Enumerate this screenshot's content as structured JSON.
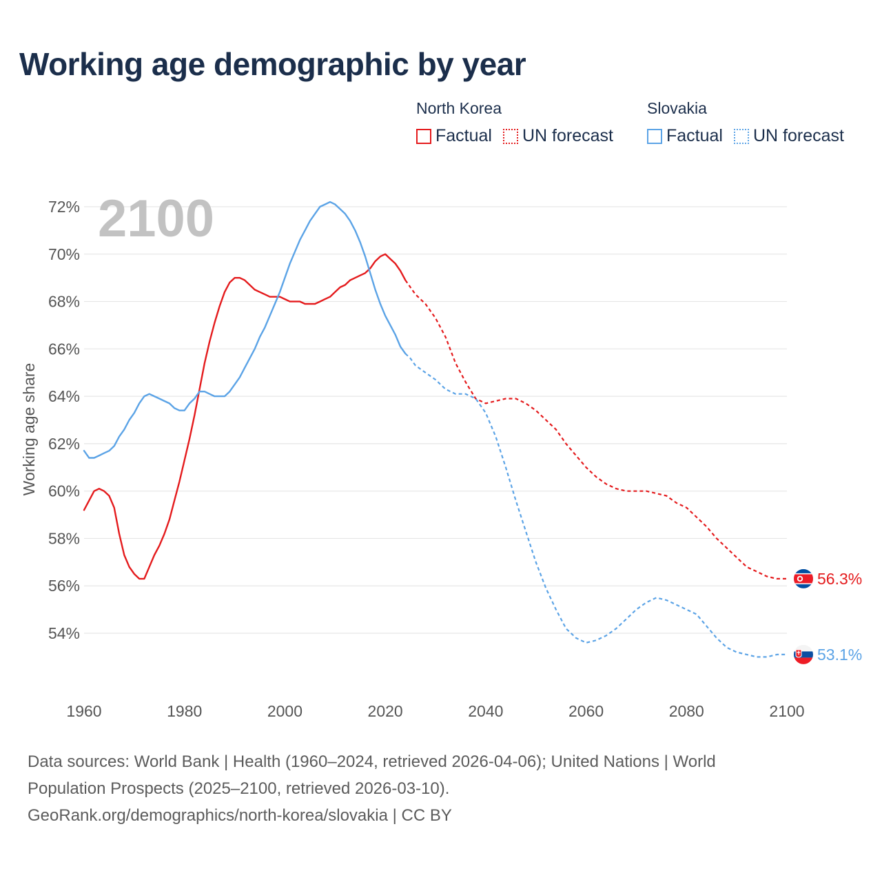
{
  "title": "Working age demographic by year",
  "legend": {
    "groups": [
      {
        "country": "North Korea",
        "factual_label": "Factual",
        "forecast_label": "UN forecast",
        "color": "#e41a1c"
      },
      {
        "country": "Slovakia",
        "factual_label": "Factual",
        "forecast_label": "UN forecast",
        "color": "#5ba3e6"
      }
    ]
  },
  "year_overlay": "2100",
  "sources": {
    "line1": "Data sources: World Bank | Health (1960–2024, retrieved 2026-04-06); United Nations | World",
    "line2": "Population Prospects (2025–2100, retrieved 2026-03-10).",
    "line3": "GeoRank.org/demographics/north-korea/slovakia | CC BY"
  },
  "chart_data": {
    "type": "line",
    "title": "Working age demographic by year",
    "xlabel": "",
    "ylabel": "Working age share",
    "xlim": [
      1960,
      2100
    ],
    "ylim": [
      52,
      72.5
    ],
    "x_ticks": [
      1960,
      1980,
      2000,
      2020,
      2040,
      2060,
      2080,
      2100
    ],
    "y_ticks": [
      54,
      56,
      58,
      60,
      62,
      64,
      66,
      68,
      70,
      72
    ],
    "y_tick_labels": [
      "54%",
      "56%",
      "58%",
      "60%",
      "62%",
      "64%",
      "66%",
      "68%",
      "70%",
      "72%"
    ],
    "grid": true,
    "factual_end_year": 2024,
    "series": [
      {
        "name": "North Korea",
        "color": "#e41a1c",
        "end_label": "56.3%",
        "points": [
          [
            1960,
            59.2
          ],
          [
            1961,
            59.6
          ],
          [
            1962,
            60.0
          ],
          [
            1963,
            60.1
          ],
          [
            1964,
            60.0
          ],
          [
            1965,
            59.8
          ],
          [
            1966,
            59.3
          ],
          [
            1967,
            58.2
          ],
          [
            1968,
            57.3
          ],
          [
            1969,
            56.8
          ],
          [
            1970,
            56.5
          ],
          [
            1971,
            56.3
          ],
          [
            1972,
            56.3
          ],
          [
            1973,
            56.8
          ],
          [
            1974,
            57.3
          ],
          [
            1975,
            57.7
          ],
          [
            1976,
            58.2
          ],
          [
            1977,
            58.8
          ],
          [
            1978,
            59.6
          ],
          [
            1979,
            60.4
          ],
          [
            1980,
            61.3
          ],
          [
            1981,
            62.2
          ],
          [
            1982,
            63.2
          ],
          [
            1983,
            64.3
          ],
          [
            1984,
            65.4
          ],
          [
            1985,
            66.3
          ],
          [
            1986,
            67.1
          ],
          [
            1987,
            67.8
          ],
          [
            1988,
            68.4
          ],
          [
            1989,
            68.8
          ],
          [
            1990,
            69.0
          ],
          [
            1991,
            69.0
          ],
          [
            1992,
            68.9
          ],
          [
            1993,
            68.7
          ],
          [
            1994,
            68.5
          ],
          [
            1995,
            68.4
          ],
          [
            1996,
            68.3
          ],
          [
            1997,
            68.2
          ],
          [
            1998,
            68.2
          ],
          [
            1999,
            68.2
          ],
          [
            2000,
            68.1
          ],
          [
            2001,
            68.0
          ],
          [
            2002,
            68.0
          ],
          [
            2003,
            68.0
          ],
          [
            2004,
            67.9
          ],
          [
            2005,
            67.9
          ],
          [
            2006,
            67.9
          ],
          [
            2007,
            68.0
          ],
          [
            2008,
            68.1
          ],
          [
            2009,
            68.2
          ],
          [
            2010,
            68.4
          ],
          [
            2011,
            68.6
          ],
          [
            2012,
            68.7
          ],
          [
            2013,
            68.9
          ],
          [
            2014,
            69.0
          ],
          [
            2015,
            69.1
          ],
          [
            2016,
            69.2
          ],
          [
            2017,
            69.4
          ],
          [
            2018,
            69.7
          ],
          [
            2019,
            69.9
          ],
          [
            2020,
            70.0
          ],
          [
            2021,
            69.8
          ],
          [
            2022,
            69.6
          ],
          [
            2023,
            69.3
          ],
          [
            2024,
            68.9
          ],
          [
            2025,
            68.6
          ],
          [
            2026,
            68.3
          ],
          [
            2028,
            67.9
          ],
          [
            2030,
            67.3
          ],
          [
            2032,
            66.5
          ],
          [
            2034,
            65.4
          ],
          [
            2036,
            64.6
          ],
          [
            2038,
            63.9
          ],
          [
            2040,
            63.7
          ],
          [
            2042,
            63.8
          ],
          [
            2044,
            63.9
          ],
          [
            2046,
            63.9
          ],
          [
            2048,
            63.7
          ],
          [
            2050,
            63.4
          ],
          [
            2052,
            63.0
          ],
          [
            2054,
            62.6
          ],
          [
            2056,
            62.0
          ],
          [
            2058,
            61.5
          ],
          [
            2060,
            61.0
          ],
          [
            2062,
            60.6
          ],
          [
            2064,
            60.3
          ],
          [
            2066,
            60.1
          ],
          [
            2068,
            60.0
          ],
          [
            2070,
            60.0
          ],
          [
            2072,
            60.0
          ],
          [
            2074,
            59.9
          ],
          [
            2076,
            59.8
          ],
          [
            2078,
            59.5
          ],
          [
            2080,
            59.3
          ],
          [
            2082,
            58.9
          ],
          [
            2084,
            58.5
          ],
          [
            2086,
            58.0
          ],
          [
            2088,
            57.6
          ],
          [
            2090,
            57.2
          ],
          [
            2092,
            56.8
          ],
          [
            2094,
            56.6
          ],
          [
            2096,
            56.4
          ],
          [
            2098,
            56.3
          ],
          [
            2100,
            56.3
          ]
        ]
      },
      {
        "name": "Slovakia",
        "color": "#5ba3e6",
        "end_label": "53.1%",
        "points": [
          [
            1960,
            61.7
          ],
          [
            1961,
            61.4
          ],
          [
            1962,
            61.4
          ],
          [
            1963,
            61.5
          ],
          [
            1964,
            61.6
          ],
          [
            1965,
            61.7
          ],
          [
            1966,
            61.9
          ],
          [
            1967,
            62.3
          ],
          [
            1968,
            62.6
          ],
          [
            1969,
            63.0
          ],
          [
            1970,
            63.3
          ],
          [
            1971,
            63.7
          ],
          [
            1972,
            64.0
          ],
          [
            1973,
            64.1
          ],
          [
            1974,
            64.0
          ],
          [
            1975,
            63.9
          ],
          [
            1976,
            63.8
          ],
          [
            1977,
            63.7
          ],
          [
            1978,
            63.5
          ],
          [
            1979,
            63.4
          ],
          [
            1980,
            63.4
          ],
          [
            1981,
            63.7
          ],
          [
            1982,
            63.9
          ],
          [
            1983,
            64.2
          ],
          [
            1984,
            64.2
          ],
          [
            1985,
            64.1
          ],
          [
            1986,
            64.0
          ],
          [
            1987,
            64.0
          ],
          [
            1988,
            64.0
          ],
          [
            1989,
            64.2
          ],
          [
            1990,
            64.5
          ],
          [
            1991,
            64.8
          ],
          [
            1992,
            65.2
          ],
          [
            1993,
            65.6
          ],
          [
            1994,
            66.0
          ],
          [
            1995,
            66.5
          ],
          [
            1996,
            66.9
          ],
          [
            1997,
            67.4
          ],
          [
            1998,
            67.9
          ],
          [
            1999,
            68.4
          ],
          [
            2000,
            69.0
          ],
          [
            2001,
            69.6
          ],
          [
            2002,
            70.1
          ],
          [
            2003,
            70.6
          ],
          [
            2004,
            71.0
          ],
          [
            2005,
            71.4
          ],
          [
            2006,
            71.7
          ],
          [
            2007,
            72.0
          ],
          [
            2008,
            72.1
          ],
          [
            2009,
            72.2
          ],
          [
            2010,
            72.1
          ],
          [
            2011,
            71.9
          ],
          [
            2012,
            71.7
          ],
          [
            2013,
            71.4
          ],
          [
            2014,
            71.0
          ],
          [
            2015,
            70.5
          ],
          [
            2016,
            69.9
          ],
          [
            2017,
            69.2
          ],
          [
            2018,
            68.5
          ],
          [
            2019,
            67.9
          ],
          [
            2020,
            67.4
          ],
          [
            2021,
            67.0
          ],
          [
            2022,
            66.6
          ],
          [
            2023,
            66.1
          ],
          [
            2024,
            65.8
          ],
          [
            2025,
            65.6
          ],
          [
            2026,
            65.3
          ],
          [
            2028,
            65.0
          ],
          [
            2030,
            64.7
          ],
          [
            2032,
            64.3
          ],
          [
            2034,
            64.1
          ],
          [
            2036,
            64.1
          ],
          [
            2038,
            63.9
          ],
          [
            2040,
            63.3
          ],
          [
            2042,
            62.3
          ],
          [
            2044,
            61.0
          ],
          [
            2046,
            59.6
          ],
          [
            2048,
            58.3
          ],
          [
            2050,
            57.0
          ],
          [
            2052,
            55.9
          ],
          [
            2054,
            55.0
          ],
          [
            2056,
            54.2
          ],
          [
            2058,
            53.8
          ],
          [
            2060,
            53.6
          ],
          [
            2062,
            53.7
          ],
          [
            2064,
            53.9
          ],
          [
            2066,
            54.2
          ],
          [
            2068,
            54.6
          ],
          [
            2070,
            55.0
          ],
          [
            2072,
            55.3
          ],
          [
            2074,
            55.5
          ],
          [
            2076,
            55.4
          ],
          [
            2078,
            55.2
          ],
          [
            2080,
            55.0
          ],
          [
            2082,
            54.8
          ],
          [
            2084,
            54.3
          ],
          [
            2086,
            53.8
          ],
          [
            2088,
            53.4
          ],
          [
            2090,
            53.2
          ],
          [
            2092,
            53.1
          ],
          [
            2094,
            53.0
          ],
          [
            2096,
            53.0
          ],
          [
            2098,
            53.1
          ],
          [
            2100,
            53.1
          ]
        ]
      }
    ]
  }
}
